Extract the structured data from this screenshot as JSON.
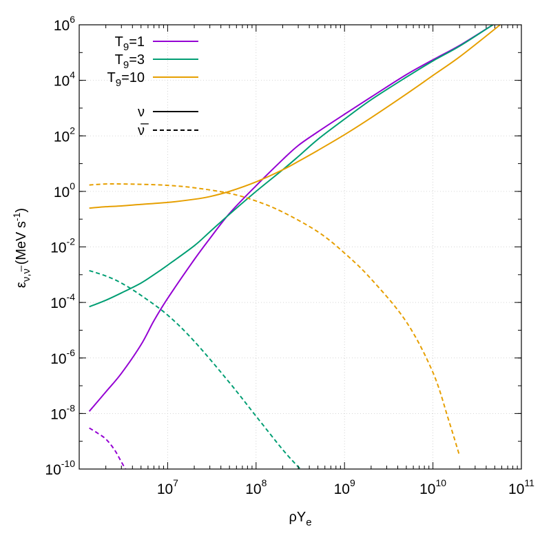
{
  "chart_data": {
    "type": "line",
    "xlabel": {
      "main": "ρY",
      "sub": "e"
    },
    "ylabel": {
      "main": "ε",
      "sub": "ν,ν̅",
      "pre_sup": " (MeV s",
      "sup": "-1",
      "post_sup": ")"
    },
    "x_scale": "log",
    "y_scale": "log",
    "xlim": [
      1000000,
      100000000000
    ],
    "ylim": [
      1e-10,
      1000000
    ],
    "x_ticks": [
      {
        "value": 10000000,
        "base": "10",
        "exp": "7"
      },
      {
        "value": 100000000,
        "base": "10",
        "exp": "8"
      },
      {
        "value": 1000000000,
        "base": "10",
        "exp": "9"
      },
      {
        "value": 10000000000,
        "base": "10",
        "exp": "10"
      },
      {
        "value": 100000000000,
        "base": "10",
        "exp": "11"
      }
    ],
    "y_ticks": [
      {
        "value": 1e-10,
        "base": "10",
        "exp": "-10"
      },
      {
        "value": 1e-08,
        "base": "10",
        "exp": "-8"
      },
      {
        "value": 1e-06,
        "base": "10",
        "exp": "-6"
      },
      {
        "value": 0.0001,
        "base": "10",
        "exp": "-4"
      },
      {
        "value": 0.01,
        "base": "10",
        "exp": "-2"
      },
      {
        "value": 1,
        "base": "10",
        "exp": "0"
      },
      {
        "value": 100,
        "base": "10",
        "exp": "2"
      },
      {
        "value": 10000,
        "base": "10",
        "exp": "4"
      },
      {
        "value": 1000000,
        "base": "10",
        "exp": "6"
      }
    ],
    "grid": true,
    "legend_position": "top-left",
    "legend_colors": [
      {
        "label_main": "T",
        "label_sub": "9",
        "label_post": "=1",
        "color": "#9400d3"
      },
      {
        "label_main": "T",
        "label_sub": "9",
        "label_post": "=3",
        "color": "#009e73"
      },
      {
        "label_main": "T",
        "label_sub": "9",
        "label_post": "=10",
        "color": "#e69f00"
      }
    ],
    "legend_styles": [
      {
        "label": "ν",
        "dash": "solid"
      },
      {
        "label": "ν̅",
        "dash": "dashed"
      }
    ],
    "series": [
      {
        "T9": "1",
        "kind": "nu",
        "color": "#9400d3",
        "dash": "solid",
        "points": [
          [
            1300000.0,
            1.2e-08
          ],
          [
            2000000.0,
            6e-08
          ],
          [
            3000000.0,
            2.8e-07
          ],
          [
            5000000.0,
            3e-06
          ],
          [
            7000000.0,
            2.2e-05
          ],
          [
            10000000.0,
            0.00014
          ],
          [
            20000000.0,
            0.0035
          ],
          [
            30000000.0,
            0.02
          ],
          [
            50000000.0,
            0.16
          ],
          [
            100000000.0,
            1.6
          ],
          [
            200000000.0,
            14
          ],
          [
            300000000.0,
            45
          ],
          [
            500000000.0,
            140
          ],
          [
            1000000000.0,
            600
          ],
          [
            2000000000.0,
            2500
          ],
          [
            5000000000.0,
            16000
          ],
          [
            10000000000.0,
            55000
          ],
          [
            20000000000.0,
            180000
          ],
          [
            50000000000.0,
            1100000
          ],
          [
            100000000000.0,
            4200000
          ]
        ]
      },
      {
        "T9": "3",
        "kind": "nu",
        "color": "#009e73",
        "dash": "solid",
        "points": [
          [
            1300000.0,
            7e-05
          ],
          [
            2000000.0,
            0.00012
          ],
          [
            3000000.0,
            0.00022
          ],
          [
            5000000.0,
            0.0005
          ],
          [
            7000000.0,
            0.001
          ],
          [
            10000000.0,
            0.0022
          ],
          [
            20000000.0,
            0.011
          ],
          [
            30000000.0,
            0.035
          ],
          [
            50000000.0,
            0.15
          ],
          [
            100000000.0,
            1
          ],
          [
            200000000.0,
            6
          ],
          [
            300000000.0,
            18
          ],
          [
            500000000.0,
            75
          ],
          [
            1000000000.0,
            400
          ],
          [
            2000000000.0,
            2000
          ],
          [
            5000000000.0,
            13000
          ],
          [
            10000000000.0,
            50000
          ],
          [
            20000000000.0,
            170000
          ],
          [
            50000000000.0,
            1100000
          ],
          [
            100000000000.0,
            4200000
          ]
        ]
      },
      {
        "T9": "10",
        "kind": "nu",
        "color": "#e69f00",
        "dash": "solid",
        "points": [
          [
            1300000.0,
            0.25
          ],
          [
            2000000.0,
            0.28
          ],
          [
            3000000.0,
            0.3
          ],
          [
            5000000.0,
            0.34
          ],
          [
            10000000.0,
            0.4
          ],
          [
            20000000.0,
            0.52
          ],
          [
            30000000.0,
            0.65
          ],
          [
            50000000.0,
            1
          ],
          [
            100000000.0,
            2.2
          ],
          [
            200000000.0,
            6
          ],
          [
            300000000.0,
            12
          ],
          [
            500000000.0,
            30
          ],
          [
            1000000000.0,
            110
          ],
          [
            2000000000.0,
            450
          ],
          [
            5000000000.0,
            3200
          ],
          [
            10000000000.0,
            15000
          ],
          [
            20000000000.0,
            70000
          ],
          [
            50000000000.0,
            700000
          ],
          [
            100000000000.0,
            4200000
          ]
        ]
      },
      {
        "T9": "1",
        "kind": "nubar",
        "color": "#9400d3",
        "dash": "dashed",
        "points": [
          [
            1300000.0,
            3e-09
          ],
          [
            1600000.0,
            2e-09
          ],
          [
            2000000.0,
            1.2e-09
          ],
          [
            2500000.0,
            5e-10
          ],
          [
            3000000.0,
            1.8e-10
          ],
          [
            3400000.0,
            9e-11
          ]
        ]
      },
      {
        "T9": "3",
        "kind": "nubar",
        "color": "#009e73",
        "dash": "dashed",
        "points": [
          [
            1300000.0,
            0.0014
          ],
          [
            2000000.0,
            0.0009
          ],
          [
            3000000.0,
            0.0005
          ],
          [
            5000000.0,
            0.00018
          ],
          [
            10000000.0,
            3.5e-05
          ],
          [
            20000000.0,
            4e-06
          ],
          [
            50000000.0,
            1.3e-07
          ],
          [
            100000000.0,
            8e-09
          ],
          [
            200000000.0,
            5e-10
          ],
          [
            300000000.0,
            1.2e-10
          ],
          [
            400000000.0,
            5e-11
          ]
        ]
      },
      {
        "T9": "10",
        "kind": "nubar",
        "color": "#e69f00",
        "dash": "dashed",
        "points": [
          [
            1300000.0,
            1.7
          ],
          [
            2000000.0,
            1.85
          ],
          [
            3000000.0,
            1.85
          ],
          [
            5000000.0,
            1.8
          ],
          [
            10000000.0,
            1.65
          ],
          [
            20000000.0,
            1.35
          ],
          [
            50000000.0,
            0.85
          ],
          [
            100000000.0,
            0.45
          ],
          [
            200000000.0,
            0.18
          ],
          [
            500000000.0,
            0.035
          ],
          [
            1000000000.0,
            0.006
          ],
          [
            2000000000.0,
            0.0007
          ],
          [
            5000000000.0,
            2e-05
          ],
          [
            10000000000.0,
            3e-07
          ],
          [
            15000000000.0,
            6e-09
          ],
          [
            20000000000.0,
            3e-10
          ]
        ]
      }
    ]
  }
}
